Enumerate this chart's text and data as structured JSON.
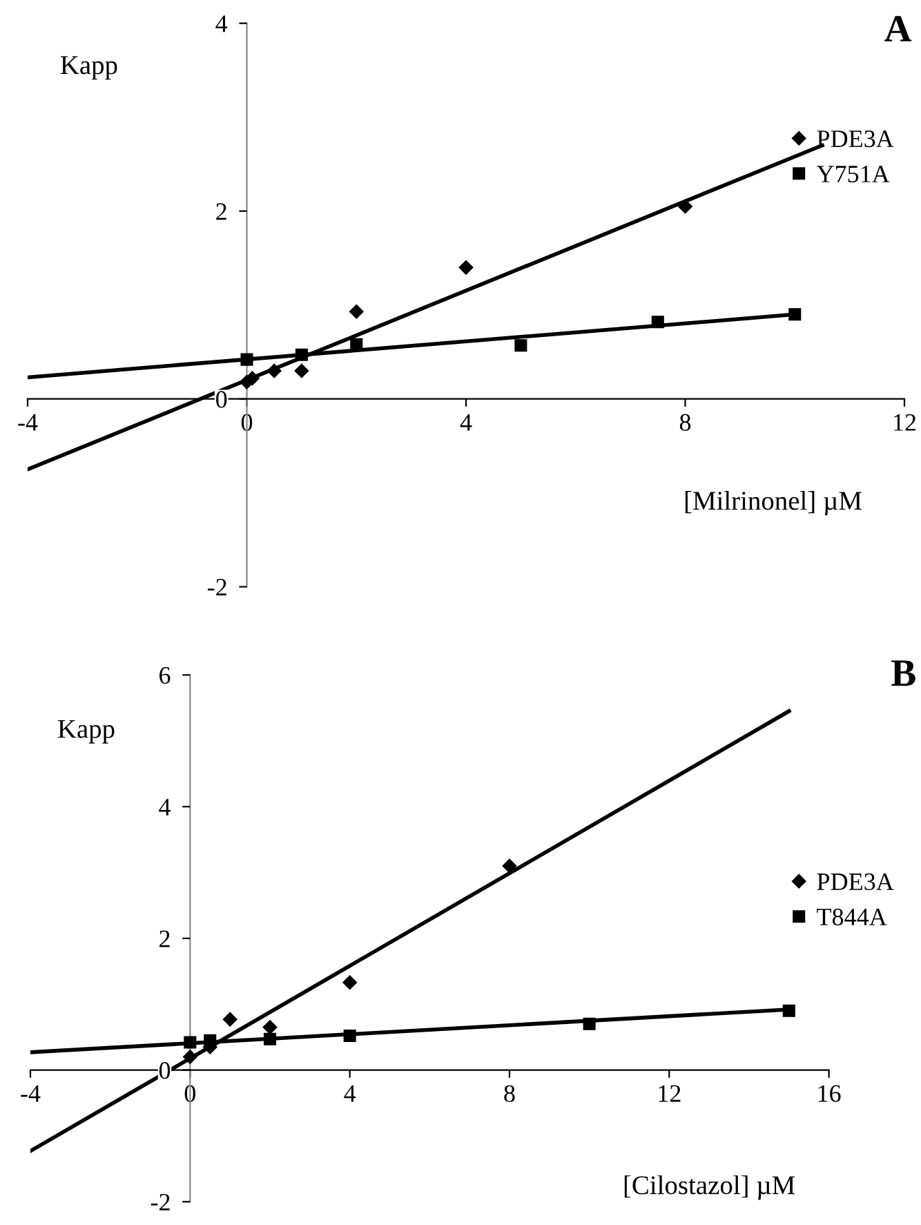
{
  "chart_data": [
    {
      "type": "scatter",
      "xlabel": "[Milrinonel] µM",
      "ylabel": "Kapp",
      "annotations": [
        "A"
      ],
      "xlim": [
        -4,
        12
      ],
      "ylim": [
        -2,
        4
      ],
      "xticks": [
        -4,
        0,
        4,
        8,
        12
      ],
      "yticks": [
        -2,
        0,
        2,
        4
      ],
      "grid": false,
      "legend": "right",
      "series": [
        {
          "name": "PDE3A",
          "color": "#000000",
          "marker": "diamond",
          "x": [
            0,
            0.1,
            0.5,
            1,
            2,
            4,
            8
          ],
          "values": [
            0.18,
            0.22,
            0.3,
            0.3,
            0.93,
            1.4,
            2.05
          ]
        },
        {
          "name": "Y751A",
          "color": "#000000",
          "marker": "square",
          "x": [
            0,
            1,
            2,
            5,
            7.5,
            10
          ],
          "values": [
            0.42,
            0.47,
            0.58,
            0.57,
            0.82,
            0.9
          ]
        },
        {
          "type": "line",
          "color": "#000000",
          "marker": "none",
          "line_style": "solid",
          "x": [
            -4,
            10.5
          ],
          "values": [
            -0.75,
            2.7
          ]
        },
        {
          "type": "line",
          "color": "#000000",
          "marker": "none",
          "line_style": "solid",
          "x": [
            -4,
            10
          ],
          "values": [
            0.23,
            0.9
          ]
        }
      ]
    },
    {
      "type": "scatter",
      "xlabel": "[Cilostazol] µM",
      "ylabel": "Kapp",
      "annotations": [
        "B"
      ],
      "xlim": [
        -4,
        16
      ],
      "ylim": [
        -2,
        6
      ],
      "xticks": [
        -4,
        0,
        4,
        8,
        12,
        16
      ],
      "yticks": [
        -2,
        0,
        2,
        4,
        6
      ],
      "grid": false,
      "legend": "right",
      "series": [
        {
          "name": "PDE3A",
          "color": "#000000",
          "marker": "diamond",
          "x": [
            0,
            0.5,
            1,
            2,
            4,
            8
          ],
          "values": [
            0.2,
            0.35,
            0.77,
            0.65,
            1.33,
            3.1
          ]
        },
        {
          "name": "T844A",
          "color": "#000000",
          "marker": "square",
          "x": [
            0,
            0.5,
            2,
            4,
            10,
            15
          ],
          "values": [
            0.42,
            0.45,
            0.47,
            0.52,
            0.7,
            0.9
          ]
        },
        {
          "type": "line",
          "color": "#000000",
          "marker": "none",
          "line_style": "solid",
          "x": [
            -4,
            15
          ],
          "values": [
            -1.23,
            5.45
          ]
        },
        {
          "type": "line",
          "color": "#000000",
          "marker": "none",
          "line_style": "solid",
          "x": [
            -4,
            15
          ],
          "values": [
            0.27,
            0.92
          ]
        }
      ]
    }
  ]
}
